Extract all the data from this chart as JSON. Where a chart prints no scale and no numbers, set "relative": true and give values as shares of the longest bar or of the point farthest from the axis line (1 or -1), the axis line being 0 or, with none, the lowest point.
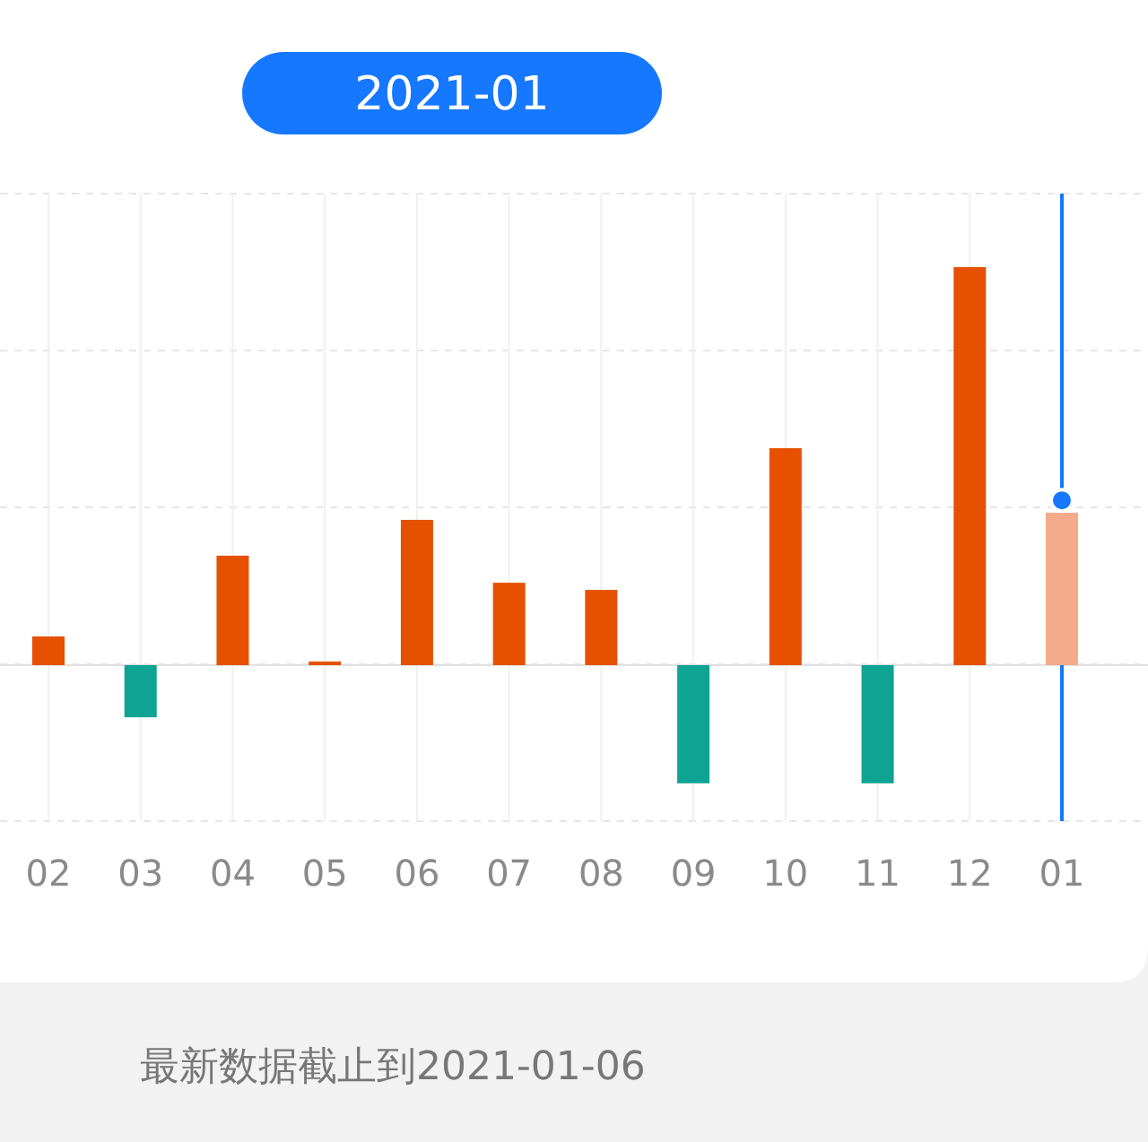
{
  "chart_data": {
    "type": "bar",
    "relative": true,
    "grid": true,
    "categories": [
      "02",
      "03",
      "04",
      "05",
      "06",
      "07",
      "08",
      "09",
      "10",
      "11",
      "12",
      "01"
    ],
    "series": [
      {
        "values": [
          0.072,
          -0.131,
          0.275,
          0.009,
          0.365,
          0.207,
          0.189,
          -0.297,
          0.545,
          -0.297,
          1,
          0.383
        ],
        "colors": [
          "#e65100",
          "#0fa394",
          "#e65100",
          "#e65100",
          "#e65100",
          "#e65100",
          "#e65100",
          "#0fa394",
          "#e65100",
          "#0fa394",
          "#e65100",
          "#f4ab8c"
        ]
      },
      {
        "type": "scatter",
        "color": "#1677ff",
        "values": [
          null,
          null,
          null,
          null,
          null,
          null,
          null,
          null,
          null,
          null,
          null,
          0.414
        ]
      }
    ],
    "ref_lines": [
      {
        "axis": "x",
        "value": "01",
        "color": "#1677ff"
      }
    ],
    "annotations": [
      "2021-01",
      "最新数据截止到2021-01-06"
    ]
  }
}
